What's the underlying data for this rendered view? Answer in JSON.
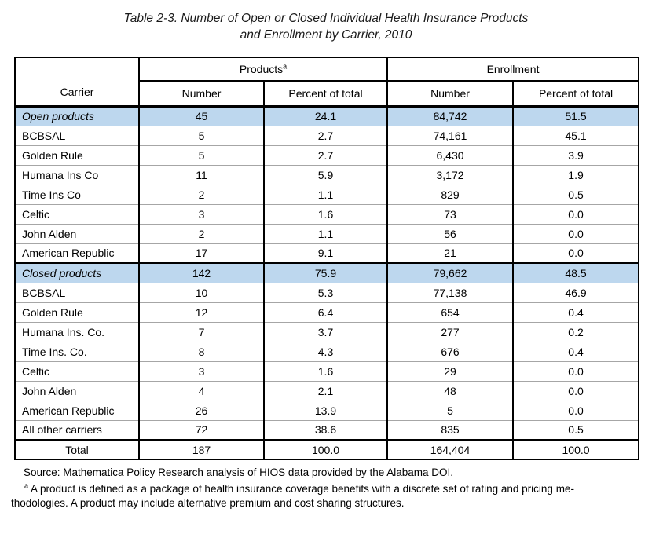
{
  "title": {
    "line1": "Table 2-3. Number of Open or Closed Individual Health Insurance Products",
    "line2": "and Enrollment by Carrier, 2010"
  },
  "colors": {
    "section_row_background": "#BDD7EE",
    "grid_line": "#000000",
    "row_separator": "#A6A6A6"
  },
  "table": {
    "headers": {
      "carrier": "Carrier",
      "products": "Products",
      "products_marker": "a",
      "enrollment": "Enrollment",
      "number": "Number",
      "percent": "Percent of total"
    },
    "rows": [
      {
        "carrier": "Open products",
        "prod_number": "45",
        "prod_pct": "24.1",
        "enr_number": "84,742",
        "enr_pct": "51.5",
        "kind": "section"
      },
      {
        "carrier": "BCBSAL",
        "prod_number": "5",
        "prod_pct": "2.7",
        "enr_number": "74,161",
        "enr_pct": "45.1",
        "kind": "data"
      },
      {
        "carrier": "Golden Rule",
        "prod_number": "5",
        "prod_pct": "2.7",
        "enr_number": "6,430",
        "enr_pct": "3.9",
        "kind": "data"
      },
      {
        "carrier": "Humana Ins Co",
        "prod_number": "11",
        "prod_pct": "5.9",
        "enr_number": "3,172",
        "enr_pct": "1.9",
        "kind": "data"
      },
      {
        "carrier": "Time Ins Co",
        "prod_number": "2",
        "prod_pct": "1.1",
        "enr_number": "829",
        "enr_pct": "0.5",
        "kind": "data"
      },
      {
        "carrier": "Celtic",
        "prod_number": "3",
        "prod_pct": "1.6",
        "enr_number": "73",
        "enr_pct": "0.0",
        "kind": "data"
      },
      {
        "carrier": "John Alden",
        "prod_number": "2",
        "prod_pct": "1.1",
        "enr_number": "56",
        "enr_pct": "0.0",
        "kind": "data"
      },
      {
        "carrier": "American Republic",
        "prod_number": "17",
        "prod_pct": "9.1",
        "enr_number": "21",
        "enr_pct": "0.0",
        "kind": "data"
      },
      {
        "carrier": "Closed products",
        "prod_number": "142",
        "prod_pct": "75.9",
        "enr_number": "79,662",
        "enr_pct": "48.5",
        "kind": "section"
      },
      {
        "carrier": "BCBSAL",
        "prod_number": "10",
        "prod_pct": "5.3",
        "enr_number": "77,138",
        "enr_pct": "46.9",
        "kind": "data"
      },
      {
        "carrier": "Golden Rule",
        "prod_number": "12",
        "prod_pct": "6.4",
        "enr_number": "654",
        "enr_pct": "0.4",
        "kind": "data"
      },
      {
        "carrier": "Humana Ins. Co.",
        "prod_number": "7",
        "prod_pct": "3.7",
        "enr_number": "277",
        "enr_pct": "0.2",
        "kind": "data"
      },
      {
        "carrier": "Time Ins. Co.",
        "prod_number": "8",
        "prod_pct": "4.3",
        "enr_number": "676",
        "enr_pct": "0.4",
        "kind": "data"
      },
      {
        "carrier": "Celtic",
        "prod_number": "3",
        "prod_pct": "1.6",
        "enr_number": "29",
        "enr_pct": "0.0",
        "kind": "data"
      },
      {
        "carrier": "John Alden",
        "prod_number": "4",
        "prod_pct": "2.1",
        "enr_number": "48",
        "enr_pct": "0.0",
        "kind": "data"
      },
      {
        "carrier": "American Republic",
        "prod_number": "26",
        "prod_pct": "13.9",
        "enr_number": "5",
        "enr_pct": "0.0",
        "kind": "data"
      },
      {
        "carrier": "All other carriers",
        "prod_number": "72",
        "prod_pct": "38.6",
        "enr_number": "835",
        "enr_pct": "0.5",
        "kind": "data"
      },
      {
        "carrier": "Total",
        "prod_number": "187",
        "prod_pct": "100.0",
        "enr_number": "164,404",
        "enr_pct": "100.0",
        "kind": "total"
      }
    ]
  },
  "footer": {
    "source": "Source: Mathematica Policy Research analysis of HIOS data provided by the Alabama DOI.",
    "footnote_marker": "a",
    "footnote_line1": "A product is defined as a package of health insurance coverage benefits with a discrete set of rating and pricing me-",
    "footnote_line2": "thodologies. A product may include alternative premium and cost sharing structures."
  }
}
